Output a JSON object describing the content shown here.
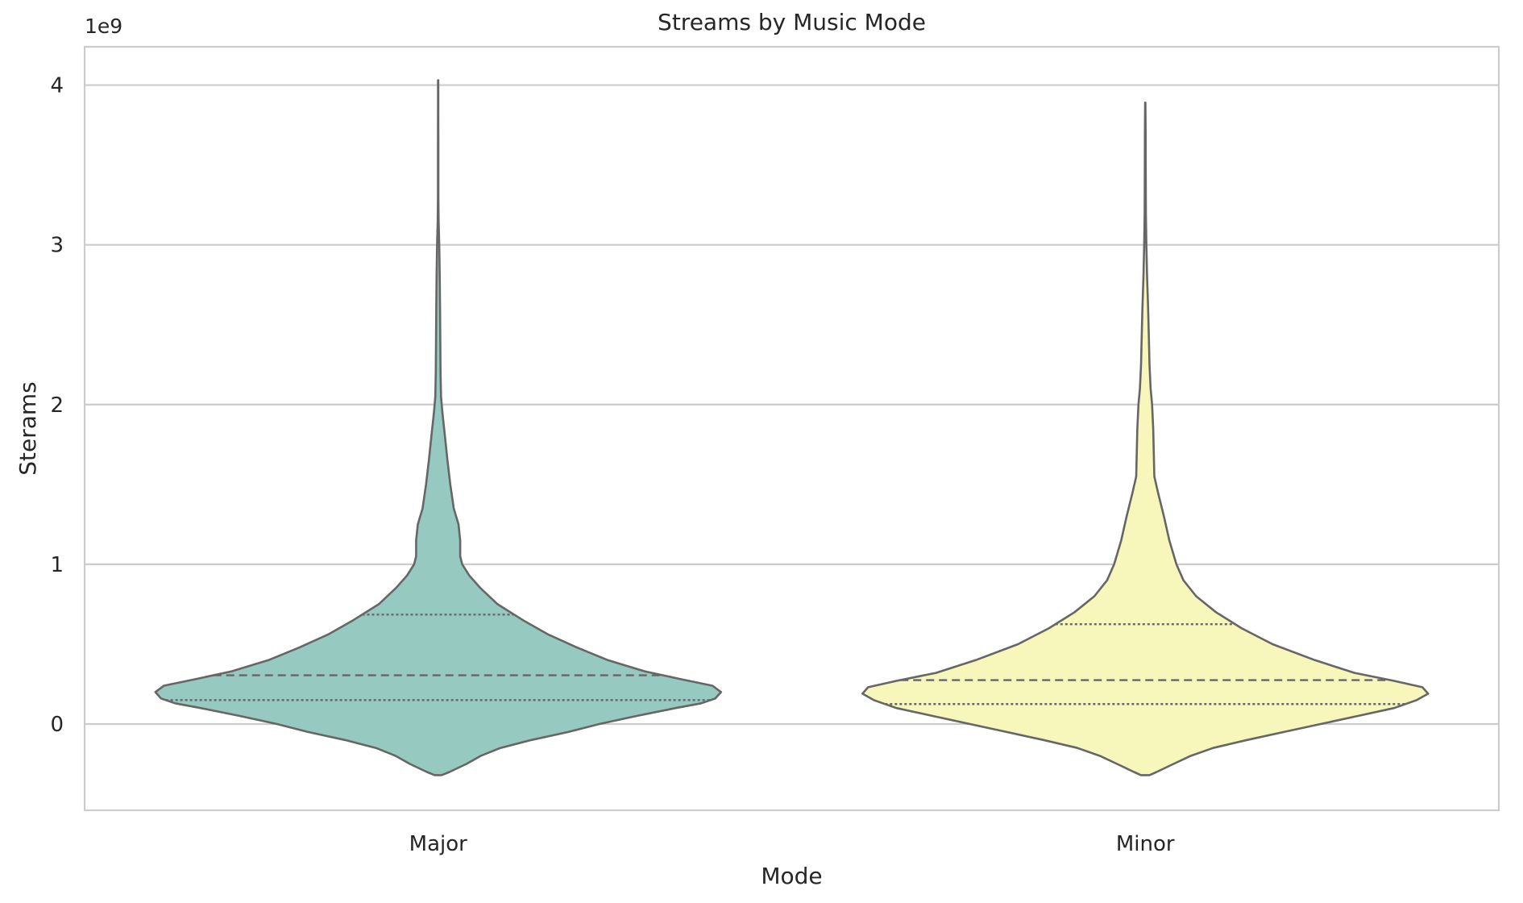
{
  "chart_data": {
    "type": "violin",
    "title": "Streams by Music Mode",
    "xlabel": "Mode",
    "ylabel": "Sterams",
    "y_offset_label": "1e9",
    "y_scale_factor": 1000000000,
    "ylim": [
      -0.54,
      4.24
    ],
    "y_ticks": [
      0,
      1,
      2,
      3,
      4
    ],
    "grid": "horizontal",
    "legend": "none",
    "categories": [
      "Major",
      "Minor"
    ],
    "colors": {
      "violin_fill": [
        "#96c9bf",
        "#f7f7bb"
      ],
      "violin_stroke": "#666666",
      "grid": "#cccccc",
      "frame": "#cccccc",
      "text": "#262626"
    },
    "series": [
      {
        "category": "Major",
        "quartiles": [
          0.15,
          0.305,
          0.685
        ],
        "density_profile": [
          [
            -0.32,
            0.012
          ],
          [
            -0.3,
            0.04
          ],
          [
            -0.25,
            0.1
          ],
          [
            -0.2,
            0.15
          ],
          [
            -0.15,
            0.22
          ],
          [
            -0.1,
            0.33
          ],
          [
            -0.05,
            0.46
          ],
          [
            0.0,
            0.57
          ],
          [
            0.05,
            0.7
          ],
          [
            0.1,
            0.84
          ],
          [
            0.13,
            0.93
          ],
          [
            0.16,
            0.98
          ],
          [
            0.2,
            1.0
          ],
          [
            0.24,
            0.97
          ],
          [
            0.28,
            0.86
          ],
          [
            0.33,
            0.73
          ],
          [
            0.4,
            0.6
          ],
          [
            0.48,
            0.49
          ],
          [
            0.56,
            0.39
          ],
          [
            0.65,
            0.3
          ],
          [
            0.75,
            0.21
          ],
          [
            0.85,
            0.15
          ],
          [
            0.93,
            0.11
          ],
          [
            1.0,
            0.085
          ],
          [
            1.05,
            0.078
          ],
          [
            1.15,
            0.078
          ],
          [
            1.25,
            0.072
          ],
          [
            1.35,
            0.055
          ],
          [
            1.5,
            0.043
          ],
          [
            1.65,
            0.033
          ],
          [
            1.8,
            0.024
          ],
          [
            1.95,
            0.015
          ],
          [
            2.05,
            0.01
          ],
          [
            2.2,
            0.0085
          ],
          [
            2.4,
            0.0075
          ],
          [
            2.6,
            0.0068
          ],
          [
            2.8,
            0.0055
          ],
          [
            3.0,
            0.0038
          ],
          [
            3.15,
            0.0015
          ],
          [
            3.3,
            0.0008
          ],
          [
            3.6,
            0.0006
          ],
          [
            3.85,
            0.0005
          ],
          [
            4.03,
            0.0003
          ]
        ]
      },
      {
        "category": "Minor",
        "quartiles": [
          0.125,
          0.275,
          0.625
        ],
        "density_profile": [
          [
            -0.32,
            0.015
          ],
          [
            -0.3,
            0.04
          ],
          [
            -0.25,
            0.1
          ],
          [
            -0.2,
            0.16
          ],
          [
            -0.15,
            0.24
          ],
          [
            -0.1,
            0.36
          ],
          [
            -0.05,
            0.49
          ],
          [
            0.0,
            0.62
          ],
          [
            0.05,
            0.75
          ],
          [
            0.1,
            0.88
          ],
          [
            0.15,
            0.96
          ],
          [
            0.19,
            1.0
          ],
          [
            0.23,
            0.98
          ],
          [
            0.27,
            0.88
          ],
          [
            0.32,
            0.74
          ],
          [
            0.4,
            0.6
          ],
          [
            0.5,
            0.45
          ],
          [
            0.6,
            0.34
          ],
          [
            0.7,
            0.25
          ],
          [
            0.8,
            0.18
          ],
          [
            0.9,
            0.135
          ],
          [
            1.0,
            0.11
          ],
          [
            1.15,
            0.085
          ],
          [
            1.3,
            0.066
          ],
          [
            1.45,
            0.045
          ],
          [
            1.55,
            0.032
          ],
          [
            1.7,
            0.03
          ],
          [
            1.85,
            0.028
          ],
          [
            2.0,
            0.024
          ],
          [
            2.1,
            0.019
          ],
          [
            2.25,
            0.015
          ],
          [
            2.4,
            0.013
          ],
          [
            2.6,
            0.01
          ],
          [
            2.8,
            0.0065
          ],
          [
            3.0,
            0.0038
          ],
          [
            3.2,
            0.002
          ],
          [
            3.5,
            0.0015
          ],
          [
            3.7,
            0.0012
          ],
          [
            3.89,
            0.0005
          ]
        ]
      }
    ]
  }
}
